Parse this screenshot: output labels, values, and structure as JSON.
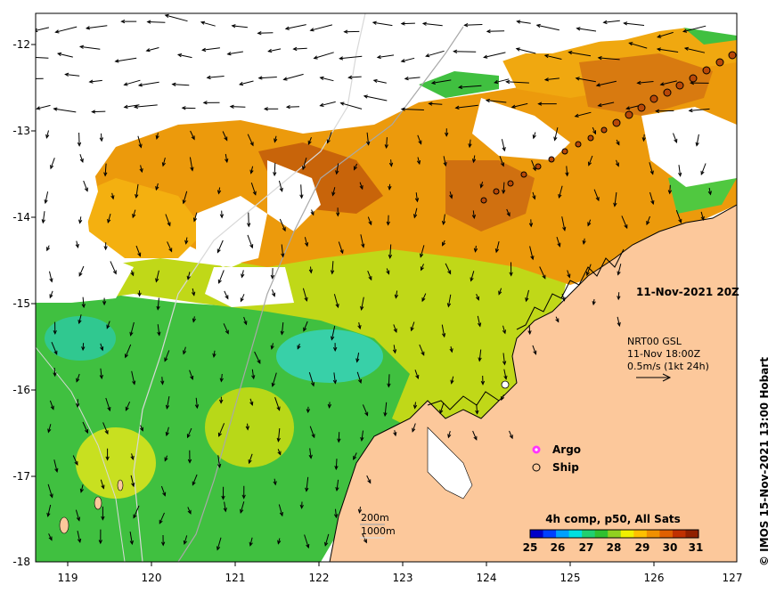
{
  "map": {
    "date_label": "11-Nov-2021 20Z",
    "credit": "© IMOS 15-Nov-2021 13:00 Hobart",
    "x_ticks": [
      "119",
      "120",
      "121",
      "122",
      "123",
      "124",
      "125",
      "126",
      "127"
    ],
    "y_ticks": [
      "-12",
      "-13",
      "-14",
      "-15",
      "-16",
      "-17",
      "-18"
    ],
    "current_legend": {
      "line1": "NRT00 GSL",
      "line2": "11-Nov 18:00Z",
      "line3": "0.5m/s (1kt 24h)"
    },
    "markers_legend": {
      "argo": "Argo",
      "ship": "Ship",
      "argo_color": "#ff33ff"
    },
    "contours_legend": {
      "line1": "200m",
      "line2": "1000m"
    },
    "colorbar": {
      "title": "4h comp, p50, All Sats",
      "ticks": [
        "25",
        "26",
        "27",
        "28",
        "29",
        "30",
        "31"
      ],
      "colors": [
        "#0000c8",
        "#0040ff",
        "#00a0ff",
        "#00e0e0",
        "#20d070",
        "#30c030",
        "#90d020",
        "#f0f000",
        "#ffc000",
        "#f09000",
        "#e06000",
        "#c03000",
        "#902000"
      ]
    },
    "colors": {
      "land": "#fcc89b",
      "cloud": "#ffffff",
      "warm": "#e8880a",
      "hot": "#b8500a",
      "mid": "#f0b400",
      "yellow": "#d8e000",
      "green": "#40c040",
      "cyan": "#30d0b0"
    }
  }
}
